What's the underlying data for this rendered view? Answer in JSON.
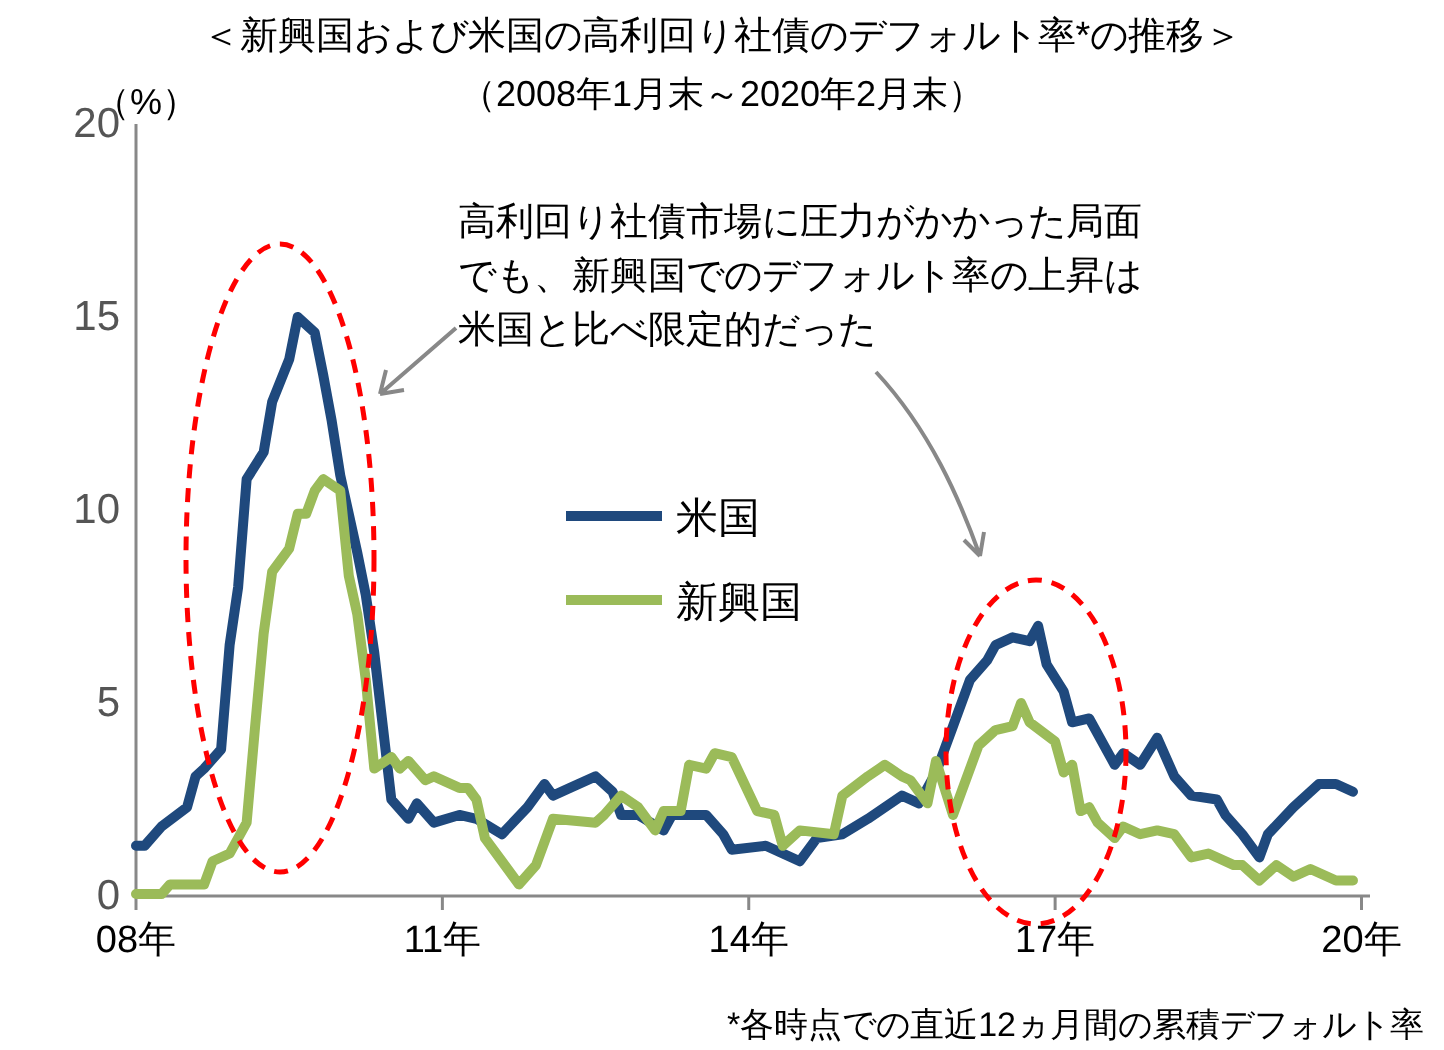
{
  "chart_data": {
    "type": "line",
    "title": "＜新興国および米国の高利回り社債のデフォルト率*の推移＞",
    "subtitle": "（2008年1月末～2020年2月末）",
    "ylabel": "（%）",
    "xlim": [
      "2008-01",
      "2020-02"
    ],
    "xticks": [
      {
        "value": "2008-01",
        "label": "08年"
      },
      {
        "value": "2011-01",
        "label": "11年"
      },
      {
        "value": "2014-01",
        "label": "14年"
      },
      {
        "value": "2017-01",
        "label": "17年"
      },
      {
        "value": "2020-01",
        "label": "20年"
      }
    ],
    "ylim": [
      0,
      20
    ],
    "yticks": [
      0,
      5,
      10,
      15,
      20
    ],
    "grid": false,
    "legend": "center",
    "line_style": "solid",
    "annotations": [
      "高利回り社債市場に圧力がかかった局面でも、新興国でのデフォルト率の上昇は米国と比べ限定的だった",
      "*各時点での直近12ヵ月間の累積デフォルト率"
    ],
    "series": [
      {
        "name": "米国",
        "color": "#1f497d",
        "x": [
          "2008-01",
          "2008-02",
          "2008-04",
          "2008-07",
          "2008-08",
          "2008-09",
          "2008-11",
          "2008-12",
          "2009-01",
          "2009-02",
          "2009-04",
          "2009-05",
          "2009-07",
          "2009-08",
          "2009-10",
          "2009-11",
          "2009-12",
          "2010-01",
          "2010-03",
          "2010-04",
          "2010-05",
          "2010-06",
          "2010-07",
          "2010-09",
          "2010-10",
          "2010-12",
          "2011-03",
          "2011-05",
          "2011-08",
          "2011-11",
          "2012-01",
          "2012-02",
          "2012-04",
          "2012-07",
          "2012-09",
          "2012-10",
          "2012-12",
          "2013-03",
          "2013-04",
          "2013-08",
          "2013-10",
          "2013-11",
          "2014-03",
          "2014-07",
          "2014-09",
          "2014-12",
          "2015-03",
          "2015-07",
          "2015-09",
          "2015-11",
          "2016-01",
          "2016-03",
          "2016-05",
          "2016-06",
          "2016-08",
          "2016-10",
          "2016-11",
          "2016-12",
          "2017-02",
          "2017-03",
          "2017-05",
          "2017-07",
          "2017-08",
          "2017-09",
          "2017-11",
          "2018-01",
          "2018-03",
          "2018-05",
          "2018-08",
          "2018-09",
          "2018-11",
          "2019-01",
          "2019-02",
          "2019-05",
          "2019-08",
          "2019-10",
          "2019-12"
        ],
        "values": [
          1.3,
          1.3,
          1.8,
          2.3,
          3.1,
          3.3,
          3.8,
          6.5,
          8.0,
          10.8,
          11.5,
          12.8,
          13.9,
          15.0,
          14.6,
          13.5,
          12.3,
          10.9,
          8.9,
          7.8,
          6.3,
          4.4,
          2.5,
          2.0,
          2.4,
          1.9,
          2.1,
          2.0,
          1.6,
          2.3,
          2.9,
          2.6,
          2.8,
          3.1,
          2.7,
          2.1,
          2.1,
          1.7,
          2.1,
          2.1,
          1.6,
          1.2,
          1.3,
          0.9,
          1.5,
          1.6,
          2.0,
          2.6,
          2.4,
          3.2,
          4.4,
          5.6,
          6.1,
          6.5,
          6.7,
          6.6,
          7.0,
          6.0,
          5.3,
          4.5,
          4.6,
          3.8,
          3.4,
          3.7,
          3.4,
          4.1,
          3.1,
          2.6,
          2.5,
          2.1,
          1.6,
          1.0,
          1.6,
          2.3,
          2.9,
          2.9,
          2.7
        ]
      },
      {
        "name": "新興国",
        "color": "#9bbb59",
        "x": [
          "2008-01",
          "2008-04",
          "2008-05",
          "2008-09",
          "2008-10",
          "2008-12",
          "2009-02",
          "2009-03",
          "2009-04",
          "2009-05",
          "2009-07",
          "2009-08",
          "2009-09",
          "2009-10",
          "2009-11",
          "2010-01",
          "2010-02",
          "2010-03",
          "2010-04",
          "2010-05",
          "2010-07",
          "2010-08",
          "2010-09",
          "2010-11",
          "2010-12",
          "2011-03",
          "2011-04",
          "2011-05",
          "2011-06",
          "2011-08",
          "2011-10",
          "2011-12",
          "2012-02",
          "2012-07",
          "2012-08",
          "2012-10",
          "2012-12",
          "2013-02",
          "2013-03",
          "2013-05",
          "2013-06",
          "2013-08",
          "2013-09",
          "2013-11",
          "2014-02",
          "2014-04",
          "2014-05",
          "2014-07",
          "2014-11",
          "2014-12",
          "2015-03",
          "2015-05",
          "2015-07",
          "2015-08",
          "2015-10",
          "2015-11",
          "2016-01",
          "2016-02",
          "2016-04",
          "2016-06",
          "2016-08",
          "2016-09",
          "2016-10",
          "2017-01",
          "2017-02",
          "2017-03",
          "2017-04",
          "2017-05",
          "2017-06",
          "2017-08",
          "2017-09",
          "2017-11",
          "2018-01",
          "2018-03",
          "2018-05",
          "2018-07",
          "2018-10",
          "2018-11",
          "2019-01",
          "2019-03",
          "2019-05",
          "2019-07",
          "2019-10",
          "2019-12"
        ],
        "values": [
          0.05,
          0.05,
          0.3,
          0.3,
          0.9,
          1.1,
          1.9,
          4.4,
          6.8,
          8.4,
          9.0,
          9.9,
          9.9,
          10.5,
          10.8,
          10.5,
          8.3,
          7.3,
          5.6,
          3.3,
          3.6,
          3.3,
          3.5,
          3.0,
          3.1,
          2.8,
          2.8,
          2.5,
          1.5,
          0.9,
          0.3,
          0.8,
          2.0,
          1.9,
          2.1,
          2.6,
          2.3,
          1.7,
          2.2,
          2.2,
          3.4,
          3.3,
          3.7,
          3.6,
          2.2,
          2.1,
          1.3,
          1.7,
          1.6,
          2.6,
          3.1,
          3.4,
          3.1,
          3.0,
          2.4,
          3.5,
          2.1,
          2.7,
          3.9,
          4.3,
          4.4,
          5.0,
          4.5,
          4.0,
          3.2,
          3.4,
          2.2,
          2.3,
          1.9,
          1.5,
          1.8,
          1.6,
          1.7,
          1.6,
          1.0,
          1.1,
          0.8,
          0.8,
          0.4,
          0.8,
          0.5,
          0.7,
          0.4,
          0.4
        ]
      }
    ]
  }
}
